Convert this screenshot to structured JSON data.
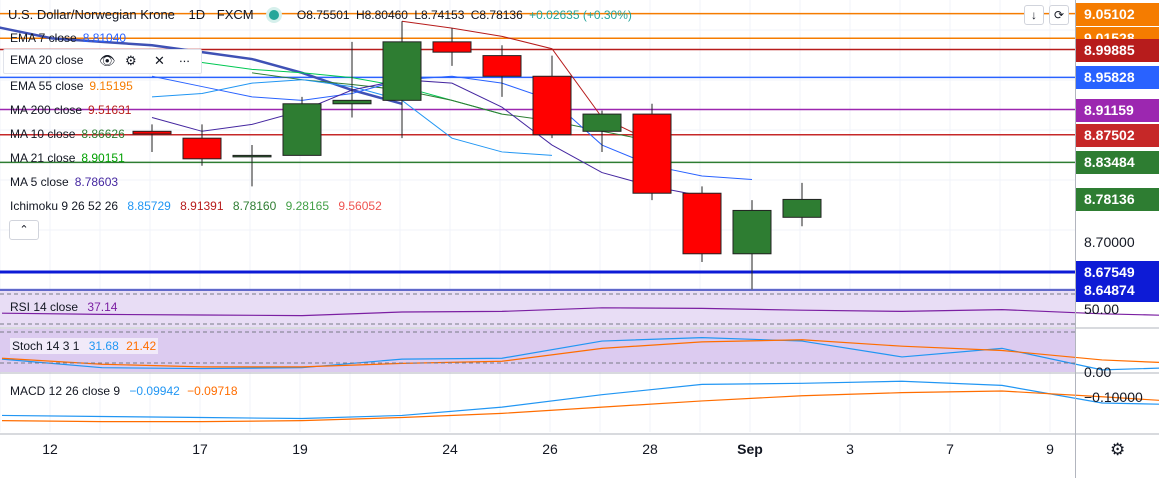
{
  "header": {
    "title": "U.S. Dollar/Norwegian Krone",
    "interval": "1D",
    "source": "FXCM",
    "ohlc": {
      "o": "O8.75501",
      "h": "H8.80460",
      "l": "L8.74153",
      "c": "C8.78136",
      "change": "+0.02635 (+0.30%)"
    }
  },
  "legend": [
    {
      "label": "EMA 7 close",
      "value": "8.81040",
      "color": "#2962ff"
    },
    {
      "label": "EMA 20 close",
      "value": "",
      "color": "#131722"
    },
    {
      "label": "EMA 55 close",
      "value": "9.15195",
      "color": "#f57c00"
    },
    {
      "label": "MA 200 close",
      "value": "9.51631",
      "color": "#b71c1c"
    },
    {
      "label": "MA 10 close",
      "value": "8.86626",
      "color": "#2e7d32"
    },
    {
      "label": "MA 21 close",
      "value": "8.90151",
      "color": "#00a000"
    },
    {
      "label": "MA 5 close",
      "value": "8.78603",
      "color": "#4527a0"
    }
  ],
  "ichimoku": {
    "label": "Ichimoku 9 26 52 26",
    "values": [
      "8.85729",
      "8.91391",
      "8.78160",
      "9.28165",
      "9.56052"
    ],
    "colors": [
      "#2196f3",
      "#b71c1c",
      "#2e7d32",
      "#43a047",
      "#ef5350"
    ]
  },
  "rsi": {
    "label": "RSI 14 close",
    "value": "37.14",
    "color": "#7b1fa2",
    "axis_label": "50.00"
  },
  "stoch": {
    "label": "Stoch 14 3 1",
    "k": "31.68",
    "d": "21.42",
    "k_color": "#2196f3",
    "d_color": "#ff6d00",
    "axis_label": "0.00"
  },
  "macd": {
    "label": "MACD 12 26 close 9",
    "macd": "−0.09942",
    "signal": "−0.09718",
    "macd_color": "#2196f3",
    "signal_color": "#ff6d00",
    "axis_label": "−0.10000"
  },
  "price_axis": [
    {
      "value": 9.05102,
      "label": "9.05102",
      "color": "#f57c00"
    },
    {
      "value": 9.01528,
      "label": "9.01528",
      "color": "#f57c00"
    },
    {
      "value": 8.99885,
      "label": "8.99885",
      "color": "#b71c1c"
    },
    {
      "value": 8.95828,
      "label": "8.95828",
      "color": "#2962ff"
    },
    {
      "value": 8.91159,
      "label": "8.91159",
      "color": "#9c27b0"
    },
    {
      "value": 8.87502,
      "label": "8.87502",
      "color": "#c62828"
    },
    {
      "value": 8.83484,
      "label": "8.83484",
      "color": "#2e7d32"
    },
    {
      "value": 8.78136,
      "label": "8.78136",
      "color": "#2e7d32"
    },
    {
      "value": 8.67549,
      "label": "8.67549",
      "color": "#0d1bd6"
    },
    {
      "value": 8.64874,
      "label": "8.64874",
      "color": "#0d1bd6"
    }
  ],
  "price_axis_plain": "8.70000",
  "x_labels": [
    "12",
    "17",
    "19",
    "24",
    "26",
    "28",
    "Sep",
    "3",
    "7",
    "9"
  ],
  "chart_data": {
    "type": "candlestick",
    "title": "U.S. Dollar/Norwegian Krone",
    "ylim": [
      8.645,
      9.065
    ],
    "candles": [
      {
        "o": 8.88,
        "h": 8.89,
        "l": 8.85,
        "c": 8.876
      },
      {
        "o": 8.87,
        "h": 8.89,
        "l": 8.83,
        "c": 8.84
      },
      {
        "o": 8.845,
        "h": 8.86,
        "l": 8.8,
        "c": 8.845
      },
      {
        "o": 8.845,
        "h": 8.93,
        "l": 8.845,
        "c": 8.92
      },
      {
        "o": 8.92,
        "h": 9.01,
        "l": 8.9,
        "c": 8.925
      },
      {
        "o": 8.925,
        "h": 9.04,
        "l": 8.87,
        "c": 9.01
      },
      {
        "o": 9.01,
        "h": 9.03,
        "l": 8.975,
        "c": 8.995
      },
      {
        "o": 8.99,
        "h": 9.005,
        "l": 8.93,
        "c": 8.96
      },
      {
        "o": 8.96,
        "h": 8.99,
        "l": 8.87,
        "c": 8.875
      },
      {
        "o": 8.88,
        "h": 8.91,
        "l": 8.85,
        "c": 8.905
      },
      {
        "o": 8.905,
        "h": 8.92,
        "l": 8.78,
        "c": 8.79
      },
      {
        "o": 8.79,
        "h": 8.8,
        "l": 8.69,
        "c": 8.702
      },
      {
        "o": 8.702,
        "h": 8.78,
        "l": 8.65,
        "c": 8.765
      },
      {
        "o": 8.755,
        "h": 8.805,
        "l": 8.742,
        "c": 8.781
      }
    ],
    "ma_series": [
      {
        "color": "#3f51b5",
        "width": 2.5,
        "start": -5,
        "values": [
          9.06,
          9.045,
          9.03,
          9.015,
          9.01,
          9.005,
          8.995,
          8.985,
          8.965,
          8.94,
          8.92
        ]
      },
      {
        "color": "#00c853",
        "width": 1,
        "start": 0,
        "values": [
          8.99,
          8.98,
          8.97,
          8.965,
          8.958,
          8.945,
          8.925,
          8.905
        ]
      },
      {
        "color": "#b71c1c",
        "width": 1,
        "start": 5,
        "values": [
          9.04,
          9.03,
          9.018,
          9.0,
          8.9,
          8.865
        ]
      },
      {
        "color": "#2e7d32",
        "width": 1,
        "start": 2,
        "values": [
          8.965,
          8.955,
          8.948,
          8.94,
          8.925,
          8.905,
          8.895,
          8.88,
          8.866
        ]
      },
      {
        "color": "#2196f3",
        "width": 1,
        "start": 0,
        "values": [
          8.93,
          8.935,
          8.95,
          8.955,
          8.945,
          8.925,
          8.87,
          8.85,
          8.845
        ]
      },
      {
        "color": "#2962ff",
        "width": 1,
        "start": 0,
        "values": [
          8.96,
          8.945,
          8.93,
          8.925,
          8.935,
          8.955,
          8.96,
          8.95,
          8.925,
          8.86,
          8.83,
          8.815,
          8.81
        ]
      },
      {
        "color": "#4527a0",
        "width": 1,
        "start": 0,
        "values": [
          8.9,
          8.88,
          8.89,
          8.91,
          8.94,
          8.955,
          8.95,
          8.915,
          8.86,
          8.82,
          8.8,
          8.786
        ]
      }
    ],
    "rsi": [
      43,
      41,
      40,
      39,
      45,
      46,
      52,
      51,
      48,
      46,
      49,
      42,
      38,
      41,
      43
    ],
    "rsi_ylim": [
      20,
      80
    ],
    "stoch_k": [
      30,
      10,
      8,
      10,
      30,
      32,
      72,
      80,
      72,
      35,
      55,
      5,
      12,
      32,
      40
    ],
    "stoch_d": [
      32,
      18,
      12,
      12,
      20,
      25,
      55,
      70,
      75,
      60,
      50,
      28,
      18,
      16,
      30
    ],
    "stoch_ylim": [
      0,
      100
    ],
    "macd": [
      -0.12,
      -0.125,
      -0.13,
      -0.135,
      -0.12,
      -0.08,
      -0.02,
      0.03,
      0.035,
      0.045,
      0.025,
      -0.06,
      -0.07,
      -0.068
    ],
    "macd_signal": [
      -0.145,
      -0.15,
      -0.15,
      -0.145,
      -0.13,
      -0.11,
      -0.08,
      -0.05,
      -0.025,
      -0.01,
      -0.002,
      -0.03,
      -0.06,
      -0.063
    ],
    "macd_ylim": [
      -0.2,
      0.08
    ]
  }
}
